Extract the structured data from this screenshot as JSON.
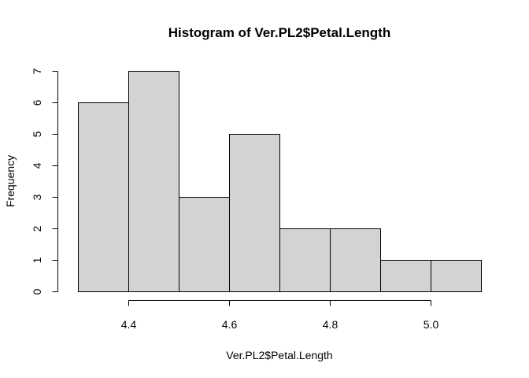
{
  "chart_data": {
    "type": "bar",
    "title": "Histogram of Ver.PL2$Petal.Length",
    "xlabel": "Ver.PL2$Petal.Length",
    "ylabel": "Frequency",
    "bins": [
      {
        "start": 4.3,
        "end": 4.4,
        "count": 6
      },
      {
        "start": 4.4,
        "end": 4.5,
        "count": 7
      },
      {
        "start": 4.5,
        "end": 4.6,
        "count": 3
      },
      {
        "start": 4.6,
        "end": 4.7,
        "count": 5
      },
      {
        "start": 4.7,
        "end": 4.8,
        "count": 2
      },
      {
        "start": 4.8,
        "end": 4.9,
        "count": 2
      },
      {
        "start": 4.9,
        "end": 5.0,
        "count": 1
      },
      {
        "start": 5.0,
        "end": 5.1,
        "count": 1
      }
    ],
    "xlim": [
      4.3,
      5.1
    ],
    "ylim": [
      0,
      7
    ],
    "x_ticks": [
      "4.4",
      "4.6",
      "4.8",
      "5.0"
    ],
    "y_ticks": [
      "0",
      "1",
      "2",
      "3",
      "4",
      "5",
      "6",
      "7"
    ],
    "bar_fill": "#d3d3d3",
    "grid": false
  }
}
